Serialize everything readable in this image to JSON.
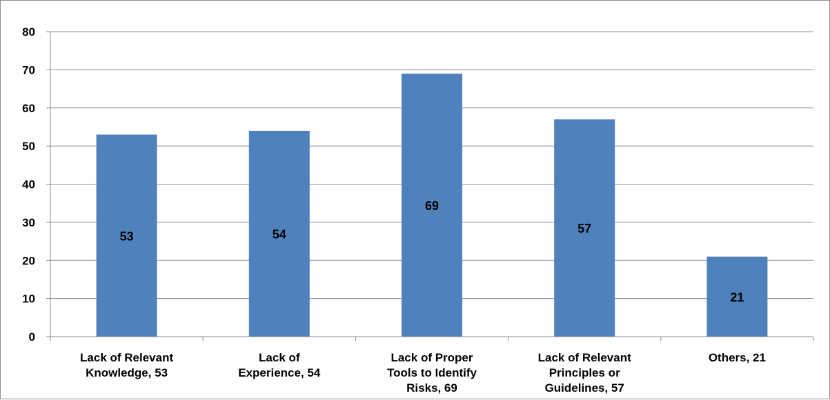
{
  "chart_data": {
    "type": "bar",
    "categories": [
      [
        "Lack of Relevant",
        "Knowledge, 53"
      ],
      [
        "Lack of",
        "Experience, 54"
      ],
      [
        "Lack of Proper",
        "Tools to Identify",
        "Risks, 69"
      ],
      [
        "Lack of Relevant",
        "Principles or",
        "Guidelines, 57"
      ],
      [
        "Others, 21"
      ]
    ],
    "values": [
      53,
      54,
      69,
      57,
      21
    ],
    "data_labels": [
      "53",
      "54",
      "69",
      "57",
      "21"
    ],
    "ylim": [
      0,
      80
    ],
    "yticks": [
      0,
      10,
      20,
      30,
      40,
      50,
      60,
      70,
      80
    ],
    "grid": true,
    "bar_color": "#4f81bd",
    "grid_color": "#8c8c8c"
  }
}
